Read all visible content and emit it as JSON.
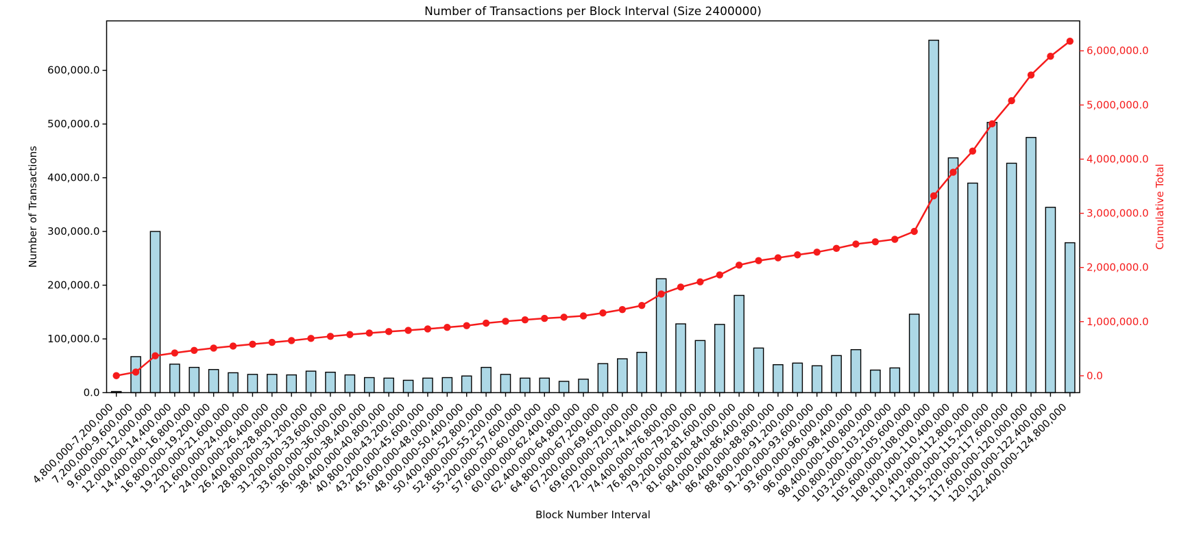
{
  "chart_data": {
    "type": "bar",
    "title": "Number of Transactions per Block Interval (Size 2400000)",
    "xlabel": "Block Number Interval",
    "grid": false,
    "legend": false,
    "categories": [
      "4,800,000-7,200,000",
      "7,200,000-9,600,000",
      "9,600,000-12,000,000",
      "12,000,000-14,400,000",
      "14,400,000-16,800,000",
      "16,800,000-19,200,000",
      "19,200,000-21,600,000",
      "21,600,000-24,000,000",
      "24,000,000-26,400,000",
      "26,400,000-28,800,000",
      "28,800,000-31,200,000",
      "31,200,000-33,600,000",
      "33,600,000-36,000,000",
      "36,000,000-38,400,000",
      "38,400,000-40,800,000",
      "40,800,000-43,200,000",
      "43,200,000-45,600,000",
      "45,600,000-48,000,000",
      "48,000,000-50,400,000",
      "50,400,000-52,800,000",
      "52,800,000-55,200,000",
      "55,200,000-57,600,000",
      "57,600,000-60,000,000",
      "60,000,000-62,400,000",
      "62,400,000-64,800,000",
      "64,800,000-67,200,000",
      "67,200,000-69,600,000",
      "69,600,000-72,000,000",
      "72,000,000-74,400,000",
      "74,400,000-76,800,000",
      "76,800,000-79,200,000",
      "79,200,000-81,600,000",
      "81,600,000-84,000,000",
      "84,000,000-86,400,000",
      "86,400,000-88,800,000",
      "88,800,000-91,200,000",
      "91,200,000-93,600,000",
      "93,600,000-96,000,000",
      "96,000,000-98,400,000",
      "98,400,000-100,800,000",
      "100,800,000-103,200,000",
      "103,200,000-105,600,000",
      "105,600,000-108,000,000",
      "108,000,000-110,400,000",
      "110,400,000-112,800,000",
      "112,800,000-115,200,000",
      "115,200,000-117,600,000",
      "117,600,000-120,000,000",
      "120,000,000-122,400,000",
      "122,400,000-124,800,000"
    ],
    "series": [
      {
        "name": "Number of Transactions",
        "type": "bar",
        "axis": "left",
        "values": [
          2000,
          67000,
          300000,
          53000,
          47000,
          43000,
          37000,
          34000,
          34000,
          33000,
          40000,
          38000,
          33000,
          28000,
          27000,
          23000,
          27000,
          28000,
          31000,
          47000,
          34000,
          27000,
          27000,
          21000,
          25000,
          54000,
          63000,
          75000,
          212000,
          128000,
          97000,
          127000,
          181000,
          83000,
          52000,
          55000,
          50000,
          69000,
          80000,
          42000,
          46000,
          146000,
          656000,
          437000,
          390000,
          503000,
          427000,
          475000,
          345000,
          279000
        ]
      },
      {
        "name": "Cumulative Total",
        "type": "line",
        "axis": "right",
        "values": [
          2000,
          69000,
          369000,
          422000,
          469000,
          512000,
          549000,
          583000,
          617000,
          650000,
          690000,
          728000,
          761000,
          789000,
          816000,
          839000,
          866000,
          894000,
          925000,
          972000,
          1006000,
          1033000,
          1060000,
          1081000,
          1106000,
          1160000,
          1223000,
          1298000,
          1510000,
          1638000,
          1735000,
          1862000,
          2043000,
          2126000,
          2178000,
          2233000,
          2283000,
          2352000,
          2432000,
          2474000,
          2520000,
          2666000,
          3322000,
          3759000,
          4149000,
          4652000,
          5079000,
          5554000,
          5899000,
          6178000
        ]
      }
    ],
    "left_axis": {
      "label": "Number of Transactions",
      "tick_values": [
        0,
        100000,
        200000,
        300000,
        400000,
        500000,
        600000
      ],
      "tick_labels": [
        "0.0",
        "100,000.0",
        "200,000.0",
        "300,000.0",
        "400,000.0",
        "500,000.0",
        "600,000.0"
      ],
      "range": [
        0,
        692000
      ]
    },
    "right_axis": {
      "label": "Cumulative Total",
      "tick_values": [
        0,
        1000000,
        2000000,
        3000000,
        4000000,
        5000000,
        6000000
      ],
      "tick_labels": [
        "0.0",
        "1,000,000.0",
        "2,000,000.0",
        "3,000,000.0",
        "4,000,000.0",
        "5,000,000.0",
        "6,000,000.0"
      ],
      "range": [
        -311000,
        6553000
      ]
    },
    "colors": {
      "bar_fill": "#ADD8E6",
      "bar_edge": "#000000",
      "line": "#F51B1B",
      "text": "#000000",
      "background": "#FFFFFF"
    }
  }
}
